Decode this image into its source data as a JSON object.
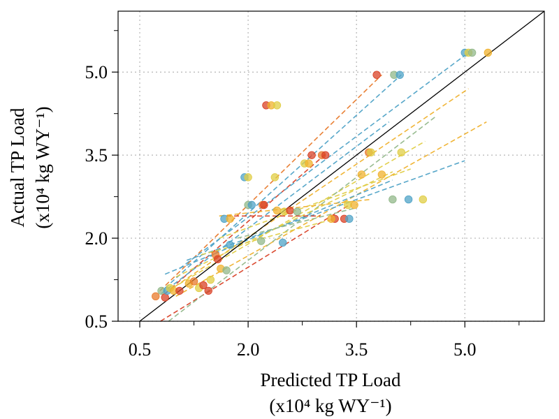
{
  "chart_data": {
    "type": "scatter",
    "title": "",
    "xlabel_line1": "Predicted TP Load",
    "xlabel_line2": "(x10⁴ kg WY⁻¹)",
    "ylabel_line1": "Actual TP Load",
    "ylabel_line2": "(x10⁴ kg WY⁻¹)",
    "xlim": [
      0.2,
      6.1
    ],
    "ylim": [
      0.5,
      6.1
    ],
    "xticks": [
      0.5,
      2.0,
      3.5,
      5.0
    ],
    "xtick_labels": [
      "0.5",
      "2.0",
      "3.5",
      "5.0"
    ],
    "yticks": [
      0.5,
      2.0,
      3.5,
      5.0
    ],
    "ytick_labels": [
      "0.5",
      "2.0",
      "3.5",
      "5.0"
    ],
    "minor_ticks": [
      1.25,
      2.75,
      4.25,
      5.75
    ],
    "grid": true,
    "reference_line": "1:1",
    "palette": [
      "#d94126",
      "#e87a2b",
      "#f0b22e",
      "#e0cd44",
      "#92b88a",
      "#4fa3c7"
    ],
    "points": [
      {
        "x": 0.72,
        "y": 0.95,
        "c": 1
      },
      {
        "x": 0.8,
        "y": 1.05,
        "c": 4
      },
      {
        "x": 0.85,
        "y": 0.93,
        "c": 0
      },
      {
        "x": 0.88,
        "y": 1.05,
        "c": 5
      },
      {
        "x": 0.92,
        "y": 1.1,
        "c": 3
      },
      {
        "x": 0.97,
        "y": 1.05,
        "c": 2
      },
      {
        "x": 1.05,
        "y": 1.05,
        "c": 0
      },
      {
        "x": 1.18,
        "y": 1.18,
        "c": 2
      },
      {
        "x": 1.25,
        "y": 1.22,
        "c": 1
      },
      {
        "x": 1.32,
        "y": 1.1,
        "c": 3
      },
      {
        "x": 1.38,
        "y": 1.15,
        "c": 0
      },
      {
        "x": 1.45,
        "y": 1.05,
        "c": 0
      },
      {
        "x": 1.48,
        "y": 1.25,
        "c": 3
      },
      {
        "x": 1.55,
        "y": 1.7,
        "c": 1
      },
      {
        "x": 1.58,
        "y": 1.62,
        "c": 0
      },
      {
        "x": 1.62,
        "y": 1.45,
        "c": 2
      },
      {
        "x": 1.7,
        "y": 1.42,
        "c": 4
      },
      {
        "x": 1.75,
        "y": 1.88,
        "c": 5
      },
      {
        "x": 1.67,
        "y": 2.35,
        "c": 5
      },
      {
        "x": 1.75,
        "y": 2.35,
        "c": 2
      },
      {
        "x": 1.95,
        "y": 3.1,
        "c": 5
      },
      {
        "x": 2.0,
        "y": 3.1,
        "c": 3
      },
      {
        "x": 2.0,
        "y": 2.6,
        "c": 4
      },
      {
        "x": 2.05,
        "y": 2.6,
        "c": 5
      },
      {
        "x": 2.2,
        "y": 2.6,
        "c": 1
      },
      {
        "x": 2.22,
        "y": 2.6,
        "c": 0
      },
      {
        "x": 2.25,
        "y": 4.4,
        "c": 0
      },
      {
        "x": 2.32,
        "y": 4.4,
        "c": 2
      },
      {
        "x": 2.4,
        "y": 4.4,
        "c": 3
      },
      {
        "x": 2.37,
        "y": 3.1,
        "c": 3
      },
      {
        "x": 2.18,
        "y": 1.95,
        "c": 4
      },
      {
        "x": 2.48,
        "y": 1.92,
        "c": 5
      },
      {
        "x": 2.4,
        "y": 2.5,
        "c": 2
      },
      {
        "x": 2.5,
        "y": 2.48,
        "c": 3
      },
      {
        "x": 2.58,
        "y": 2.5,
        "c": 0
      },
      {
        "x": 2.68,
        "y": 2.48,
        "c": 4
      },
      {
        "x": 2.88,
        "y": 3.5,
        "c": 0
      },
      {
        "x": 2.78,
        "y": 3.35,
        "c": 3
      },
      {
        "x": 2.84,
        "y": 3.35,
        "c": 2
      },
      {
        "x": 3.02,
        "y": 3.5,
        "c": 1
      },
      {
        "x": 3.07,
        "y": 3.5,
        "c": 0
      },
      {
        "x": 3.2,
        "y": 2.35,
        "c": 0
      },
      {
        "x": 3.15,
        "y": 2.35,
        "c": 2
      },
      {
        "x": 3.33,
        "y": 2.35,
        "c": 0
      },
      {
        "x": 3.4,
        "y": 2.35,
        "c": 5
      },
      {
        "x": 3.38,
        "y": 2.6,
        "c": 3
      },
      {
        "x": 3.47,
        "y": 2.6,
        "c": 2
      },
      {
        "x": 3.57,
        "y": 3.15,
        "c": 2
      },
      {
        "x": 3.67,
        "y": 3.55,
        "c": 1
      },
      {
        "x": 3.7,
        "y": 3.55,
        "c": 3
      },
      {
        "x": 3.78,
        "y": 4.95,
        "c": 0
      },
      {
        "x": 3.85,
        "y": 3.15,
        "c": 2
      },
      {
        "x": 4.02,
        "y": 4.95,
        "c": 4
      },
      {
        "x": 4.1,
        "y": 4.95,
        "c": 5
      },
      {
        "x": 4.0,
        "y": 2.7,
        "c": 4
      },
      {
        "x": 4.22,
        "y": 2.7,
        "c": 5
      },
      {
        "x": 4.42,
        "y": 2.7,
        "c": 3
      },
      {
        "x": 4.12,
        "y": 3.55,
        "c": 3
      },
      {
        "x": 5.0,
        "y": 5.35,
        "c": 5
      },
      {
        "x": 5.05,
        "y": 5.35,
        "c": 3
      },
      {
        "x": 5.1,
        "y": 5.35,
        "c": 4
      },
      {
        "x": 5.32,
        "y": 5.35,
        "c": 2
      }
    ],
    "trend_lines": [
      {
        "x0": 0.78,
        "y0": 1.05,
        "x1": 3.85,
        "y1": 4.95,
        "c": 1
      },
      {
        "x0": 0.85,
        "y0": 1.0,
        "x1": 3.1,
        "y1": 3.55,
        "c": 0
      },
      {
        "x0": 0.85,
        "y0": 1.1,
        "x1": 4.12,
        "y1": 4.95,
        "c": 5
      },
      {
        "x0": 0.8,
        "y0": 1.0,
        "x1": 3.95,
        "y1": 4.1,
        "c": 5
      },
      {
        "x0": 0.9,
        "y0": 1.05,
        "x1": 5.05,
        "y1": 4.7,
        "c": 2
      },
      {
        "x0": 0.95,
        "y0": 1.1,
        "x1": 4.45,
        "y1": 3.75,
        "c": 3
      },
      {
        "x0": 1.0,
        "y0": 0.95,
        "x1": 5.3,
        "y1": 4.1,
        "c": 2
      },
      {
        "x0": 0.6,
        "y0": 0.35,
        "x1": 3.4,
        "y1": 2.6,
        "c": 0
      },
      {
        "x0": 0.8,
        "y0": 0.4,
        "x1": 4.6,
        "y1": 4.2,
        "c": 4
      },
      {
        "x0": 0.85,
        "y0": 1.35,
        "x1": 4.0,
        "y1": 3.05,
        "c": 5
      },
      {
        "x0": 1.15,
        "y0": 1.6,
        "x1": 5.0,
        "y1": 3.4,
        "c": 5
      },
      {
        "x0": 1.05,
        "y0": 1.45,
        "x1": 5.05,
        "y1": 5.35,
        "c": 5
      },
      {
        "x0": 1.0,
        "y0": 1.3,
        "x1": 4.0,
        "y1": 3.2,
        "c": 3
      },
      {
        "x0": 1.6,
        "y0": 2.0,
        "x1": 4.25,
        "y1": 3.25,
        "c": 3
      },
      {
        "x0": 1.6,
        "y0": 2.4,
        "x1": 3.7,
        "y1": 2.7,
        "c": 2
      },
      {
        "x0": 1.35,
        "y0": 1.7,
        "x1": 3.2,
        "y1": 2.35,
        "c": 3
      },
      {
        "x0": 1.85,
        "y0": 2.0,
        "x1": 3.5,
        "y1": 2.55,
        "c": 4
      },
      {
        "x0": 1.7,
        "y0": 2.4,
        "x1": 3.0,
        "y1": 2.4,
        "c": 0
      }
    ]
  }
}
